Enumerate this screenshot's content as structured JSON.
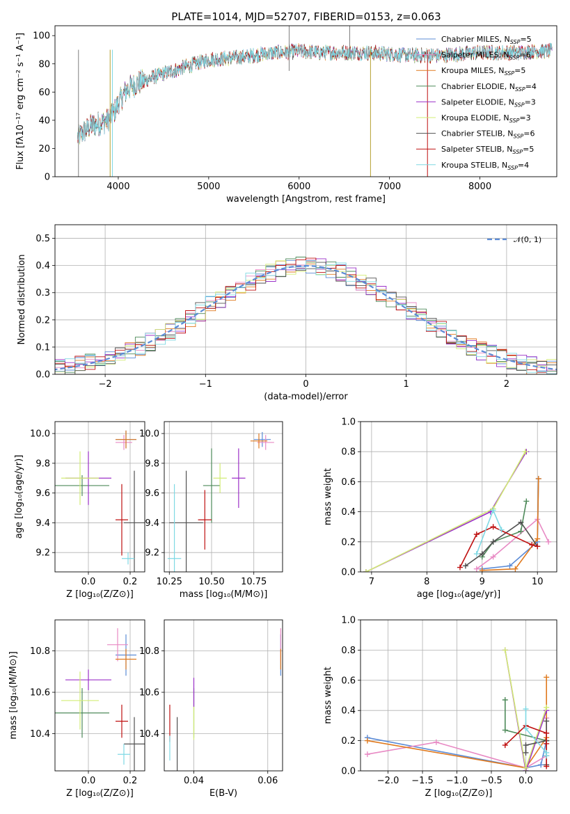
{
  "figure": {
    "title": "PLATE=1014, MJD=52707, FIBERID=0153, z=0.063"
  },
  "colors": {
    "Chabrier MILES": "#5b8bd6",
    "Salpeter MILES": "#e88ac4",
    "Kroupa MILES": "#e07a1f",
    "Chabrier ELODIE": "#4e8a5a",
    "Salpeter ELODIE": "#9b30c8",
    "Kroupa ELODIE": "#d2ec74",
    "Chabrier STELIB": "#505050",
    "Salpeter STELIB": "#bf1010",
    "Kroupa STELIB": "#7fd9e4",
    "normal": "#5b8bd6"
  },
  "chart_data": [
    {
      "id": "spectrum",
      "type": "line",
      "title": "PLATE=1014, MJD=52707, FIBERID=0153, z=0.063",
      "xlabel": "wavelength [Angstrom, rest frame]",
      "ylabel": "Flux [fλ10⁻¹⁷ erg cm⁻² s⁻¹ A⁻¹]",
      "xlim": [
        3300,
        8850
      ],
      "ylim": [
        0,
        107
      ],
      "xticks": [
        4000,
        5000,
        6000,
        7000,
        8000
      ],
      "yticks": [
        0,
        20,
        40,
        60,
        80,
        100
      ],
      "legend_position": "top-right",
      "continuum": {
        "x": [
          3550,
          3620,
          3700,
          3800,
          3880,
          3950,
          4000,
          4100,
          4200,
          4300,
          4400,
          4500,
          4600,
          4700,
          4800,
          4900,
          5000,
          5200,
          5400,
          5600,
          5800,
          6000,
          6200,
          6400,
          6600,
          6800,
          7000,
          7200,
          7400,
          7600,
          7800,
          8000,
          8200,
          8400,
          8600,
          8800
        ],
        "y": [
          28,
          32,
          36,
          38,
          40,
          45,
          52,
          62,
          66,
          68,
          71,
          73,
          75,
          77,
          79,
          81,
          83,
          84,
          85,
          87,
          88,
          89,
          88,
          88,
          88,
          88,
          87,
          86,
          86,
          86,
          87,
          88,
          88,
          88,
          89,
          89
        ]
      },
      "series": [
        {
          "name": "Chabrier MILES, Nₛₛₚ=5",
          "label": "Chabrier MILES",
          "nssp": "5"
        },
        {
          "name": "Salpeter MILES, Nₛₛₚ=6",
          "label": "Salpeter MILES",
          "nssp": "6"
        },
        {
          "name": "Kroupa MILES, Nₛₛₚ=5",
          "label": "Kroupa MILES",
          "nssp": "5"
        },
        {
          "name": "Chabrier ELODIE, Nₛₛₚ=4",
          "label": "Chabrier ELODIE",
          "nssp": "4"
        },
        {
          "name": "Salpeter ELODIE, Nₛₛₚ=3",
          "label": "Salpeter ELODIE",
          "nssp": "3"
        },
        {
          "name": "Kroupa ELODIE, Nₛₛₚ=3",
          "label": "Kroupa ELODIE",
          "nssp": "3"
        },
        {
          "name": "Chabrier STELIB, Nₛₛₚ=6",
          "label": "Chabrier STELIB",
          "nssp": "6"
        },
        {
          "name": "Salpeter STELIB, Nₛₛₚ=5",
          "label": "Salpeter STELIB",
          "nssp": "5"
        },
        {
          "name": "Kroupa STELIB, Nₛₛₚ=4",
          "label": "Kroupa STELIB",
          "nssp": "4"
        }
      ]
    },
    {
      "id": "residuals",
      "type": "line",
      "xlabel": "(data-model)/error",
      "ylabel": "Normed distribution",
      "xlim": [
        -2.5,
        2.5
      ],
      "ylim": [
        0,
        0.55
      ],
      "xticks": [
        -2,
        -1,
        0,
        1,
        2
      ],
      "yticks": [
        0.0,
        0.1,
        0.2,
        0.3,
        0.4,
        0.5
      ],
      "grid": true,
      "legend": "𝒩(0, 1)",
      "legend_position": "top-right",
      "bin_width": 0.1
    },
    {
      "id": "age_vs_Z",
      "type": "scatter",
      "xlabel": "Z [log₁₀(Z/Z⊙)]",
      "ylabel": "age  [log₁₀(age/yr)]",
      "xlim": [
        -0.16,
        0.27
      ],
      "ylim": [
        9.07,
        10.08
      ],
      "xticks": [
        0.0,
        0.2
      ],
      "yticks": [
        9.2,
        9.4,
        9.6,
        9.8,
        10.0
      ],
      "grid": true,
      "points": [
        {
          "series": "Chabrier MILES",
          "x": 0.18,
          "xerr": 0.05,
          "y": 9.96,
          "yerr": 0.06
        },
        {
          "series": "Salpeter MILES",
          "x": 0.17,
          "xerr": 0.04,
          "y": 9.94,
          "yerr": 0.05
        },
        {
          "series": "Kroupa MILES",
          "x": 0.18,
          "xerr": 0.05,
          "y": 9.96,
          "yerr": 0.06
        },
        {
          "series": "Chabrier ELODIE",
          "x": -0.03,
          "xerr": 0.13,
          "y": 9.65,
          "yerr": 0.07
        },
        {
          "series": "Salpeter ELODIE",
          "x": 0.0,
          "xerr": 0.11,
          "y": 9.7,
          "yerr": 0.18
        },
        {
          "series": "Kroupa ELODIE",
          "x": -0.04,
          "xerr": 0.09,
          "y": 9.7,
          "yerr": 0.18
        },
        {
          "series": "Chabrier STELIB",
          "x": 0.22,
          "xerr": 0.05,
          "y": 9.4,
          "yerr": 0.35
        },
        {
          "series": "Salpeter STELIB",
          "x": 0.16,
          "xerr": 0.03,
          "y": 9.42,
          "yerr": 0.24
        },
        {
          "series": "Kroupa STELIB",
          "x": 0.19,
          "xerr": 0.03,
          "y": 9.16,
          "yerr": 0.04
        }
      ]
    },
    {
      "id": "age_vs_mass",
      "type": "scatter",
      "xlabel": "mass [log₁₀(M/M⊙)]",
      "xlim": [
        10.22,
        10.92
      ],
      "ylim": [
        9.07,
        10.08
      ],
      "xticks": [
        10.25,
        10.5,
        10.75
      ],
      "yticks": [
        9.2,
        9.4,
        9.6,
        9.8,
        10.0
      ],
      "grid": true,
      "points": [
        {
          "series": "Chabrier MILES",
          "x": 10.8,
          "xerr": 0.05,
          "y": 9.96,
          "yerr": 0.05
        },
        {
          "series": "Salpeter MILES",
          "x": 10.82,
          "xerr": 0.05,
          "y": 9.94,
          "yerr": 0.05
        },
        {
          "series": "Kroupa MILES",
          "x": 10.78,
          "xerr": 0.05,
          "y": 9.95,
          "yerr": 0.05
        },
        {
          "series": "Chabrier ELODIE",
          "x": 10.5,
          "xerr": 0.05,
          "y": 9.65,
          "yerr": 0.25
        },
        {
          "series": "Salpeter ELODIE",
          "x": 10.66,
          "xerr": 0.04,
          "y": 9.7,
          "yerr": 0.2
        },
        {
          "series": "Kroupa ELODIE",
          "x": 10.55,
          "xerr": 0.04,
          "y": 9.7,
          "yerr": 0.1
        },
        {
          "series": "Chabrier STELIB",
          "x": 10.35,
          "xerr": 0.1,
          "y": 9.4,
          "yerr": 0.35
        },
        {
          "series": "Salpeter STELIB",
          "x": 10.46,
          "xerr": 0.04,
          "y": 9.42,
          "yerr": 0.2
        },
        {
          "series": "Kroupa STELIB",
          "x": 10.28,
          "xerr": 0.04,
          "y": 9.16,
          "yerr": 0.5
        }
      ]
    },
    {
      "id": "weight_vs_age",
      "type": "line",
      "xlabel": "age  [log₁₀(age/yr)]",
      "ylabel": "mass weight",
      "xlim": [
        6.8,
        10.35
      ],
      "ylim": [
        0,
        1
      ],
      "xticks": [
        7,
        8,
        9,
        10
      ],
      "yticks": [
        0.0,
        0.2,
        0.4,
        0.6,
        0.8,
        1.0
      ],
      "grid": true,
      "series": [
        {
          "name": "Chabrier MILES",
          "x": [
            9.0,
            9.5,
            10.0,
            10.02
          ],
          "y": [
            0.02,
            0.04,
            0.2,
            0.62
          ]
        },
        {
          "name": "Salpeter MILES",
          "x": [
            8.9,
            9.2,
            10.0,
            10.2
          ],
          "y": [
            0.02,
            0.1,
            0.35,
            0.2
          ]
        },
        {
          "name": "Kroupa MILES",
          "x": [
            9.0,
            9.6,
            10.0,
            10.02
          ],
          "y": [
            0.01,
            0.02,
            0.22,
            0.62
          ]
        },
        {
          "name": "Chabrier ELODIE",
          "x": [
            9.0,
            9.2,
            9.7,
            9.8
          ],
          "y": [
            0.1,
            0.2,
            0.27,
            0.47
          ]
        },
        {
          "name": "Salpeter ELODIE",
          "x": [
            6.9,
            9.15,
            9.8
          ],
          "y": [
            0.0,
            0.4,
            0.8
          ]
        },
        {
          "name": "Kroupa ELODIE",
          "x": [
            6.9,
            9.2,
            9.78
          ],
          "y": [
            0.0,
            0.42,
            0.8
          ]
        },
        {
          "name": "Chabrier STELIB",
          "x": [
            8.7,
            9.0,
            9.2,
            9.7,
            10.0
          ],
          "y": [
            0.04,
            0.12,
            0.2,
            0.33,
            0.17
          ]
        },
        {
          "name": "Salpeter STELIB",
          "x": [
            8.6,
            8.9,
            9.2,
            9.9,
            10.0
          ],
          "y": [
            0.03,
            0.25,
            0.3,
            0.18,
            0.17
          ]
        },
        {
          "name": "Kroupa STELIB",
          "x": [
            8.9,
            9.2,
            9.35
          ],
          "y": [
            0.12,
            0.41,
            0.28
          ]
        }
      ]
    },
    {
      "id": "mass_vs_Z",
      "type": "scatter",
      "xlabel": "Z [log₁₀(Z/Z⊙)]",
      "ylabel": "mass [log₁₀(M/M⊙)]",
      "xlim": [
        -0.16,
        0.27
      ],
      "ylim": [
        10.22,
        10.95
      ],
      "xticks": [
        0.0,
        0.2
      ],
      "yticks": [
        10.4,
        10.6,
        10.8
      ],
      "grid": true,
      "points": [
        {
          "series": "Chabrier MILES",
          "x": 0.18,
          "xerr": 0.05,
          "y": 10.78,
          "yerr": 0.1
        },
        {
          "series": "Salpeter MILES",
          "x": 0.14,
          "xerr": 0.05,
          "y": 10.83,
          "yerr": 0.08
        },
        {
          "series": "Kroupa MILES",
          "x": 0.18,
          "xerr": 0.05,
          "y": 10.76,
          "yerr": 0.05
        },
        {
          "series": "Chabrier ELODIE",
          "x": -0.03,
          "xerr": 0.13,
          "y": 10.5,
          "yerr": 0.12
        },
        {
          "series": "Salpeter ELODIE",
          "x": 0.0,
          "xerr": 0.11,
          "y": 10.66,
          "yerr": 0.05
        },
        {
          "series": "Kroupa ELODIE",
          "x": -0.04,
          "xerr": 0.09,
          "y": 10.56,
          "yerr": 0.14
        },
        {
          "series": "Chabrier STELIB",
          "x": 0.22,
          "xerr": 0.05,
          "y": 10.35,
          "yerr": 0.13
        },
        {
          "series": "Salpeter STELIB",
          "x": 0.16,
          "xerr": 0.03,
          "y": 10.46,
          "yerr": 0.08
        },
        {
          "series": "Kroupa STELIB",
          "x": 0.17,
          "xerr": 0.03,
          "y": 10.3,
          "yerr": 0.05
        }
      ]
    },
    {
      "id": "mass_vs_ebv",
      "type": "scatter",
      "xlabel": "E(B-V)",
      "xlim": [
        0.032,
        0.064
      ],
      "ylim": [
        10.22,
        10.95
      ],
      "xticks": [
        0.04,
        0.06
      ],
      "yticks": [
        10.4,
        10.6,
        10.8
      ],
      "grid": true,
      "points": [
        {
          "series": "Chabrier MILES",
          "x": 0.0635,
          "y": 10.78,
          "yerr": 0.1
        },
        {
          "series": "Salpeter MILES",
          "x": 0.0635,
          "y": 10.83,
          "yerr": 0.08
        },
        {
          "series": "Kroupa MILES",
          "x": 0.0635,
          "y": 10.76,
          "yerr": 0.05
        },
        {
          "series": "Chabrier ELODIE",
          "x": 0.04,
          "y": 10.5,
          "yerr": 0.12
        },
        {
          "series": "Salpeter ELODIE",
          "x": 0.04,
          "y": 10.6,
          "yerr": 0.07
        },
        {
          "series": "Kroupa ELODIE",
          "x": 0.04,
          "y": 10.45,
          "yerr": 0.08
        },
        {
          "series": "Chabrier STELIB",
          "x": 0.0355,
          "y": 10.35,
          "yerr": 0.13
        },
        {
          "series": "Salpeter STELIB",
          "x": 0.0335,
          "y": 10.45,
          "yerr": 0.09
        },
        {
          "series": "Kroupa STELIB",
          "x": 0.0335,
          "y": 10.33,
          "yerr": 0.06
        }
      ]
    },
    {
      "id": "weight_vs_Z",
      "type": "line",
      "xlabel": "Z [log₁₀(Z/Z⊙)]",
      "ylabel": "mass weight",
      "xlim": [
        -2.4,
        0.45
      ],
      "ylim": [
        0,
        1
      ],
      "xticks": [
        -2.0,
        -1.5,
        -1.0,
        -0.5,
        0.0
      ],
      "yticks": [
        0.0,
        0.2,
        0.4,
        0.6,
        0.8,
        1.0
      ],
      "grid": true,
      "series": [
        {
          "name": "Chabrier MILES",
          "x": [
            -2.3,
            0.0,
            0.22,
            0.3
          ],
          "y": [
            0.22,
            0.02,
            0.04,
            0.2
          ]
        },
        {
          "name": "Salpeter MILES",
          "x": [
            -2.3,
            -1.3,
            0.0,
            0.3,
            0.3
          ],
          "y": [
            0.11,
            0.19,
            0.02,
            0.1,
            0.35
          ]
        },
        {
          "name": "Kroupa MILES",
          "x": [
            -2.3,
            0.0,
            0.3,
            0.3
          ],
          "y": [
            0.2,
            0.02,
            0.22,
            0.62
          ]
        },
        {
          "name": "Chabrier ELODIE",
          "x": [
            -0.3,
            -0.3,
            0.3,
            0.3
          ],
          "y": [
            0.47,
            0.27,
            0.2,
            0.1
          ]
        },
        {
          "name": "Salpeter ELODIE",
          "x": [
            -0.3,
            0.0,
            0.3
          ],
          "y": [
            0.8,
            0.0,
            0.4
          ]
        },
        {
          "name": "Kroupa ELODIE",
          "x": [
            -0.3,
            0.0,
            0.3
          ],
          "y": [
            0.8,
            0.02,
            0.42
          ]
        },
        {
          "name": "Chabrier STELIB",
          "x": [
            0.0,
            0.0,
            0.3,
            0.3,
            0.3
          ],
          "y": [
            0.12,
            0.17,
            0.2,
            0.33,
            0.04
          ]
        },
        {
          "name": "Salpeter STELIB",
          "x": [
            -0.3,
            0.0,
            0.3,
            0.3,
            0.3
          ],
          "y": [
            0.17,
            0.3,
            0.25,
            0.18,
            0.03
          ]
        },
        {
          "name": "Kroupa STELIB",
          "x": [
            0.0,
            0.0,
            0.3,
            0.3
          ],
          "y": [
            0.41,
            0.28,
            0.12,
            0.1
          ]
        }
      ]
    }
  ]
}
